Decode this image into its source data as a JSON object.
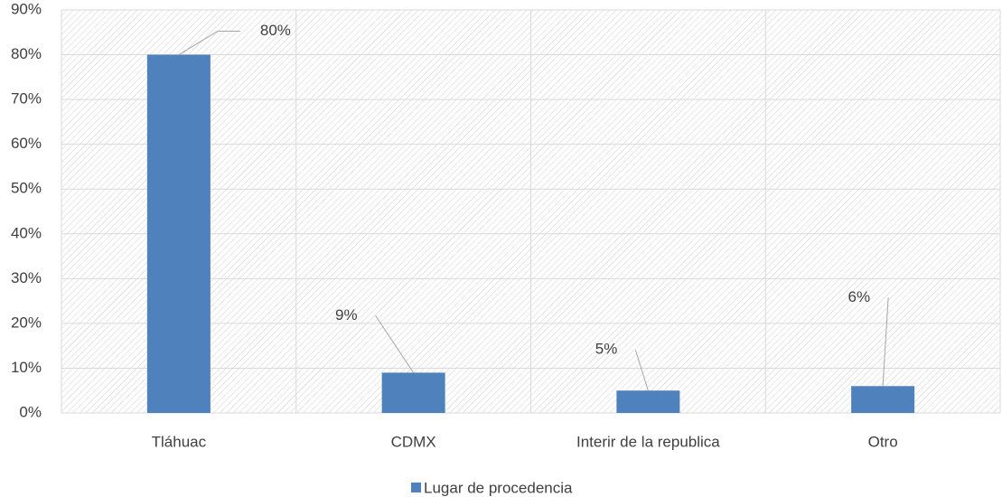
{
  "chart_data": {
    "type": "bar",
    "categories": [
      "Tláhuac",
      "CDMX",
      "Interir de la republica",
      "Otro"
    ],
    "series": [
      {
        "name": "Lugar de procedencia",
        "color": "#4f81bd",
        "values": [
          80,
          9,
          5,
          6
        ],
        "value_labels": [
          "80%",
          "9%",
          "5%",
          "6%"
        ]
      }
    ],
    "ylim": [
      0,
      90
    ],
    "yticks": [
      {
        "value": 0,
        "label": "0%"
      },
      {
        "value": 10,
        "label": "10%"
      },
      {
        "value": 20,
        "label": "20%"
      },
      {
        "value": 30,
        "label": "30%"
      },
      {
        "value": 40,
        "label": "40%"
      },
      {
        "value": 50,
        "label": "50%"
      },
      {
        "value": 60,
        "label": "60%"
      },
      {
        "value": 70,
        "label": "70%"
      },
      {
        "value": 80,
        "label": "80%"
      },
      {
        "value": 90,
        "label": "90%"
      }
    ],
    "grid": true,
    "legend": "bottom"
  }
}
